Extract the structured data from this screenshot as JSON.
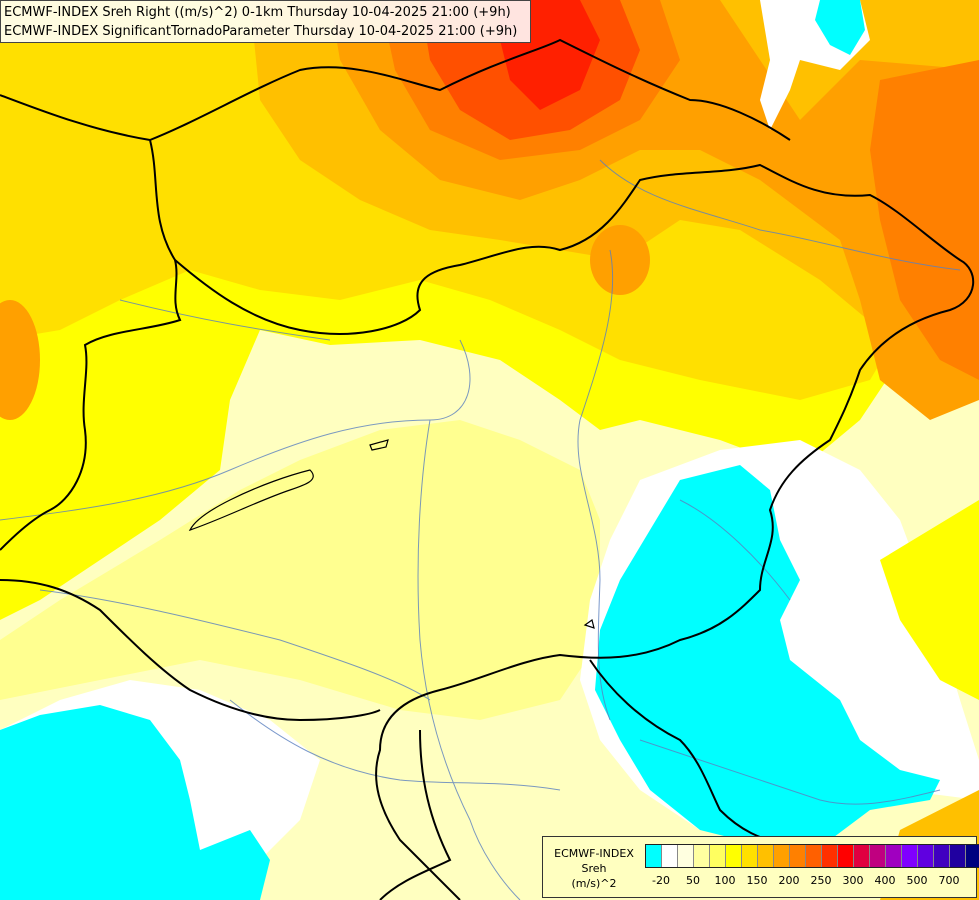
{
  "header": {
    "line1": "ECMWF-INDEX Sreh Right ((m/s)^2) 0-1km Thursday 10-04-2025 21:00 (+9h)",
    "line2": "ECMWF-INDEX SignificantTornadoParameter Thursday 10-04-2025 21:00 (+9h)"
  },
  "legend": {
    "title_line1": "ECMWF-INDEX",
    "title_line2": "Sreh",
    "title_line3": "(m/s)^2",
    "colors": [
      "#00ffff",
      "#ffffff",
      "#ffffe0",
      "#ffffa0",
      "#ffff60",
      "#ffff00",
      "#ffe000",
      "#ffc000",
      "#ffa000",
      "#ff8000",
      "#ff6000",
      "#ff3000",
      "#ff0000",
      "#e00040",
      "#c00080",
      "#a000c0",
      "#8000ff",
      "#6000e0",
      "#4000c0",
      "#2000a0",
      "#000080"
    ],
    "ticks": [
      "-20",
      "50",
      "100",
      "150",
      "200",
      "250",
      "300",
      "400",
      "500",
      "700"
    ]
  },
  "field_colors": {
    "cyan": "#00ffff",
    "white": "#ffffff",
    "pale": "#ffffc0",
    "light_yellow": "#ffff90",
    "yellow": "#ffff00",
    "gold": "#ffe000",
    "amber": "#ffc000",
    "orange": "#ffa000",
    "dark_orange": "#ff8000",
    "red_orange": "#ff5000",
    "red": "#ff2000"
  }
}
